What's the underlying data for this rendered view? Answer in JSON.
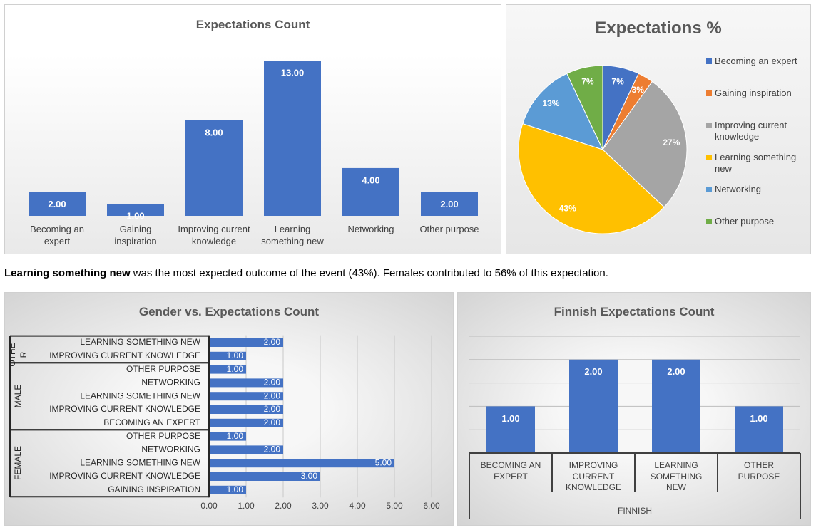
{
  "chart_data": [
    {
      "type": "bar",
      "title": "Expectations Count",
      "categories": [
        "Becoming an expert",
        "Gaining inspiration",
        "Improving current knowledge",
        "Learning something new",
        "Networking",
        "Other purpose"
      ],
      "values": [
        2,
        1,
        8,
        13,
        4,
        2
      ],
      "value_labels": [
        "2.00",
        "1.00",
        "8.00",
        "13.00",
        "4.00",
        "2.00"
      ],
      "color": "#4472c4"
    },
    {
      "type": "pie",
      "title": "Expectations %",
      "categories": [
        "Becoming an expert",
        "Gaining inspiration",
        "Improving current knowledge",
        "Learning something new",
        "Networking",
        "Other purpose"
      ],
      "values": [
        7,
        3,
        27,
        43,
        13,
        7
      ],
      "value_labels": [
        "7%",
        "3%",
        "27%",
        "43%",
        "13%",
        "7%"
      ],
      "colors": [
        "#4472c4",
        "#ed7d31",
        "#a5a5a5",
        "#ffc000",
        "#5b9bd5",
        "#70ad47"
      ],
      "legend": "right"
    },
    {
      "type": "grouped-hbar",
      "title": "Gender vs. Expectations Count",
      "groups": [
        {
          "name": "OTHER",
          "categories": [
            "LEARNING SOMETHING NEW",
            "IMPROVING CURRENT KNOWLEDGE"
          ],
          "values": [
            2,
            1
          ],
          "value_labels": [
            "2.00",
            "1.00"
          ]
        },
        {
          "name": "MALE",
          "categories": [
            "OTHER PURPOSE",
            "NETWORKING",
            "LEARNING SOMETHING NEW",
            "IMPROVING CURRENT KNOWLEDGE",
            "BECOMING AN EXPERT"
          ],
          "values": [
            1,
            2,
            2,
            2,
            2
          ],
          "value_labels": [
            "1.00",
            "2.00",
            "2.00",
            "2.00",
            "2.00"
          ]
        },
        {
          "name": "FEMALE",
          "categories": [
            "OTHER PURPOSE",
            "NETWORKING",
            "LEARNING SOMETHING NEW",
            "IMPROVING CURRENT KNOWLEDGE",
            "GAINING INSPIRATION"
          ],
          "values": [
            1,
            2,
            5,
            3,
            1
          ],
          "value_labels": [
            "1.00",
            "2.00",
            "5.00",
            "3.00",
            "1.00"
          ]
        }
      ],
      "color": "#4472c4",
      "xlim": [
        0,
        6
      ],
      "xticks": [
        {
          "value": 0,
          "label": "0.00"
        },
        {
          "value": 1,
          "label": "1.00"
        },
        {
          "value": 2,
          "label": "2.00"
        },
        {
          "value": 3,
          "label": "3.00"
        },
        {
          "value": 4,
          "label": "4.00"
        },
        {
          "value": 5,
          "label": "5.00"
        },
        {
          "value": 6,
          "label": "6.00"
        }
      ],
      "grid": true
    },
    {
      "type": "bar",
      "title": "Finnish Expectations Count",
      "group": "FINNISH",
      "categories": [
        "BECOMING AN EXPERT",
        "IMPROVING CURRENT KNOWLEDGE",
        "LEARNING SOMETHING NEW",
        "OTHER PURPOSE"
      ],
      "values": [
        1,
        2,
        2,
        1
      ],
      "value_labels": [
        "1.00",
        "2.00",
        "2.00",
        "1.00"
      ],
      "color": "#4472c4",
      "ylim": [
        0,
        2.5
      ],
      "yticks": [
        0,
        0.5,
        1,
        1.5,
        2,
        2.5
      ],
      "ytick_labels": false,
      "grid": true
    }
  ],
  "summary": {
    "bold": "Learning something new",
    "text": "was the most expected outcome of the event (43%). Females contributed to 56% of this expectation."
  }
}
